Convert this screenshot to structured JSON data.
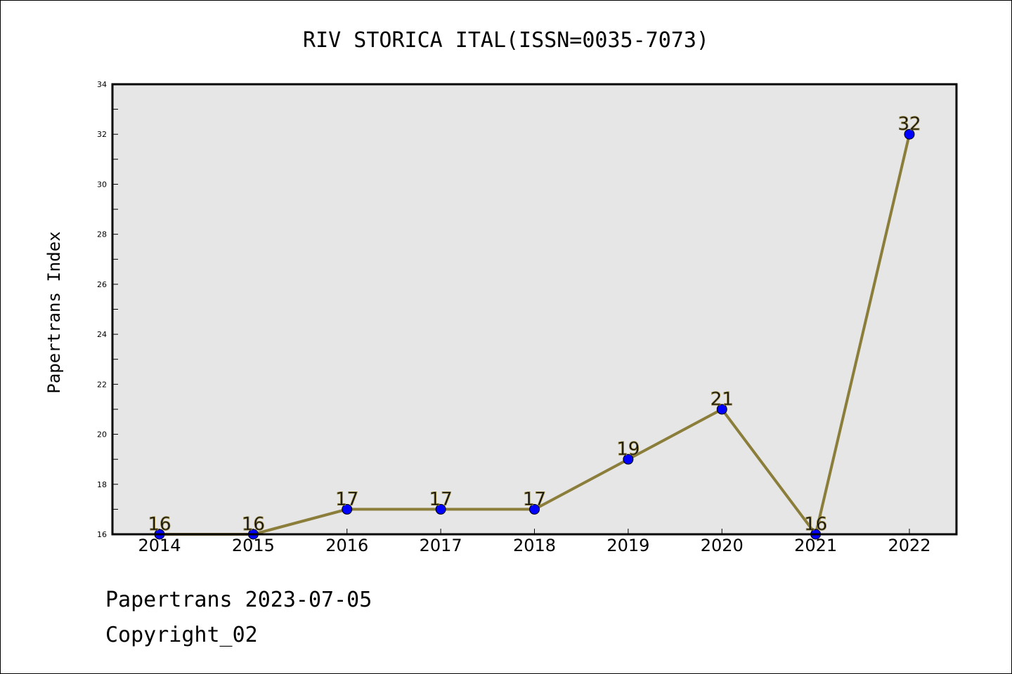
{
  "chart_data": {
    "type": "line",
    "title": "RIV STORICA ITAL(ISSN=0035-7073)",
    "ylabel": "Papertrans Index",
    "xlabel": "",
    "categories": [
      "2014",
      "2015",
      "2016",
      "2017",
      "2018",
      "2019",
      "2020",
      "2021",
      "2022"
    ],
    "values": [
      16,
      16,
      17,
      17,
      17,
      19,
      21,
      16,
      32
    ],
    "data_labels": [
      "16",
      "16",
      "17",
      "17",
      "17",
      "19",
      "21",
      "16",
      "32"
    ],
    "ylim": [
      16,
      34
    ],
    "yticks": [
      "16",
      "18",
      "20",
      "22",
      "24",
      "26",
      "28",
      "30",
      "32",
      "34"
    ],
    "grid": false,
    "line_color": "#8B7D3A",
    "marker_color": "#0000FF",
    "plot_background": "#E6E6E6"
  },
  "footer": {
    "line1": "Papertrans 2023-07-05",
    "line2": "Copyright_02"
  }
}
